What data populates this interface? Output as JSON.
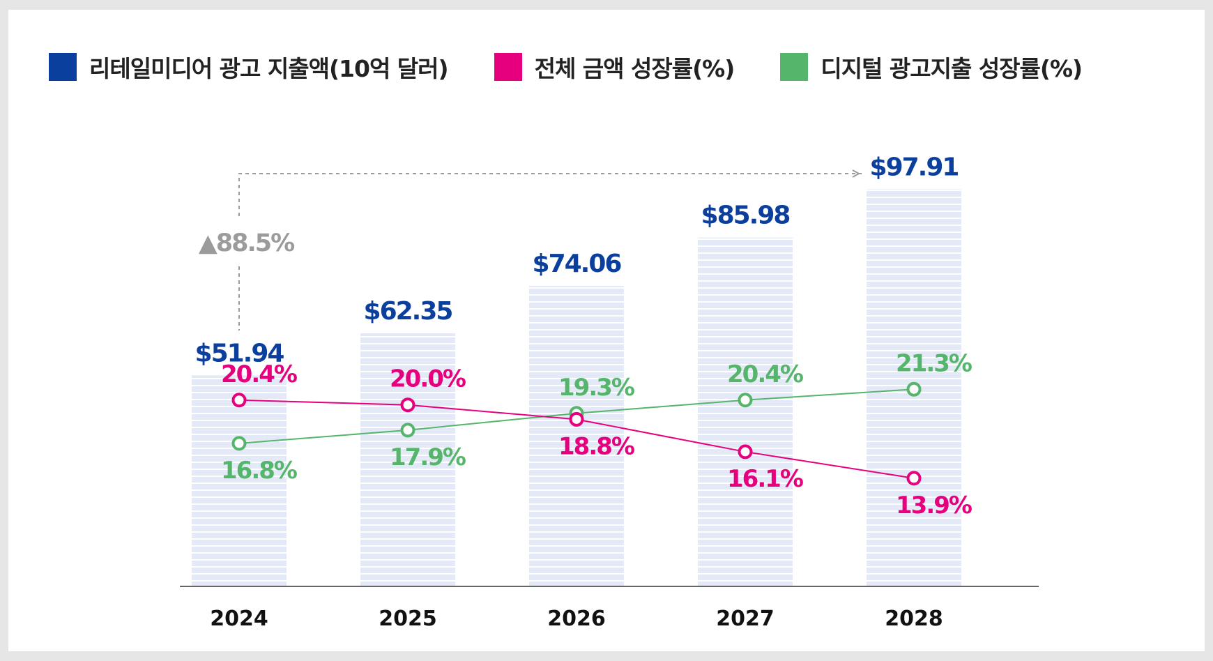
{
  "legend": [
    {
      "label": "리테일미디어 광고 지출액(10억 달러)",
      "color": "#0b3f9e"
    },
    {
      "label": "전체 금액 성장률(%)",
      "color": "#e6007e"
    },
    {
      "label": "디지털 광고지출 성장률(%)",
      "color": "#55b56b"
    }
  ],
  "chart_data": {
    "type": "bar",
    "categories": [
      "2024",
      "2025",
      "2026",
      "2027",
      "2028"
    ],
    "series": [
      {
        "name": "리테일미디어 광고 지출액(10억 달러)",
        "type": "bar",
        "color": "#0b3f9e",
        "values": [
          51.94,
          62.35,
          74.06,
          85.98,
          97.91
        ],
        "labels": [
          "$51.94",
          "$62.35",
          "$74.06",
          "$85.98",
          "$97.91"
        ]
      },
      {
        "name": "전체 금액 성장률(%)",
        "type": "line",
        "color": "#e6007e",
        "values": [
          20.4,
          20.0,
          18.8,
          16.1,
          13.9
        ],
        "labels": [
          "20.4%",
          "20.0%",
          "18.8%",
          "16.1%",
          "13.9%"
        ]
      },
      {
        "name": "디지털 광고지출 성장률(%)",
        "type": "line",
        "color": "#55b56b",
        "values": [
          16.8,
          17.9,
          19.3,
          20.4,
          21.3
        ],
        "labels": [
          "16.8%",
          "17.9%",
          "19.3%",
          "20.4%",
          "21.3%"
        ]
      }
    ],
    "annotation": {
      "text": "▲88.5%",
      "from": "2024",
      "to": "2028",
      "color": "#9b9b9b"
    },
    "bar_fill": "#e3e9f6",
    "axis_color": "#333333"
  }
}
